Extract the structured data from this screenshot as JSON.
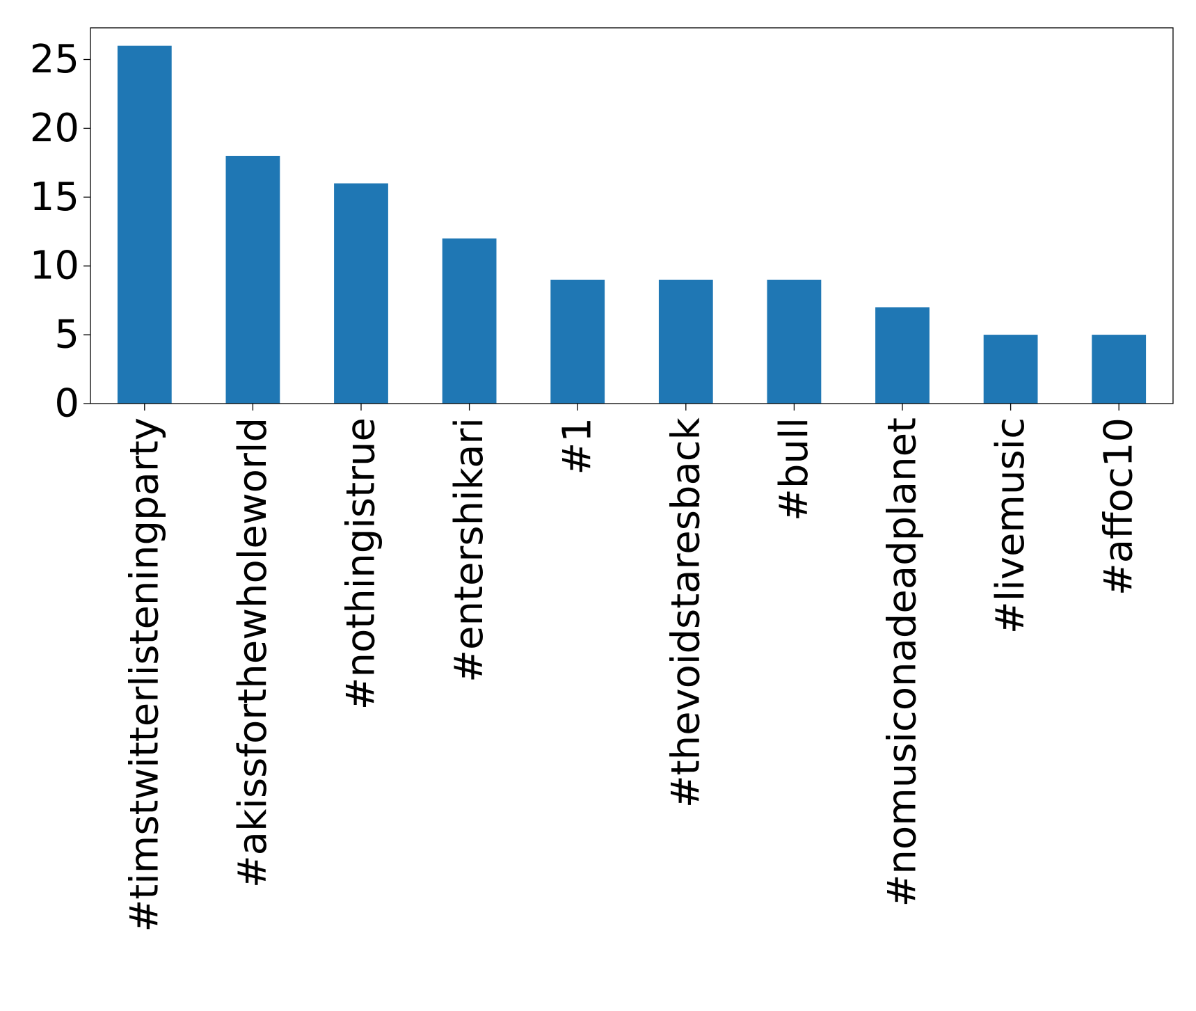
{
  "chart_data": {
    "type": "bar",
    "title": "",
    "xlabel": "",
    "ylabel": "",
    "categories": [
      "#timstwitterlisteningparty",
      "#akissforthewholeworld",
      "#nothingistrue",
      "#entershikari",
      "#1",
      "#thevoidstaresback",
      "#bull",
      "#nomusiconadeadplanet",
      "#livemusic",
      "#affoc10"
    ],
    "values": [
      26,
      18,
      16,
      12,
      9,
      9,
      9,
      7,
      5,
      5
    ],
    "ylim": [
      0,
      27.3
    ],
    "yticks": [
      0,
      5,
      10,
      15,
      20,
      25
    ],
    "yticklabels": [
      "0",
      "5",
      "10",
      "15",
      "20",
      "25"
    ],
    "bar_color": "#1f77b4",
    "grid": false,
    "legend": "none"
  }
}
